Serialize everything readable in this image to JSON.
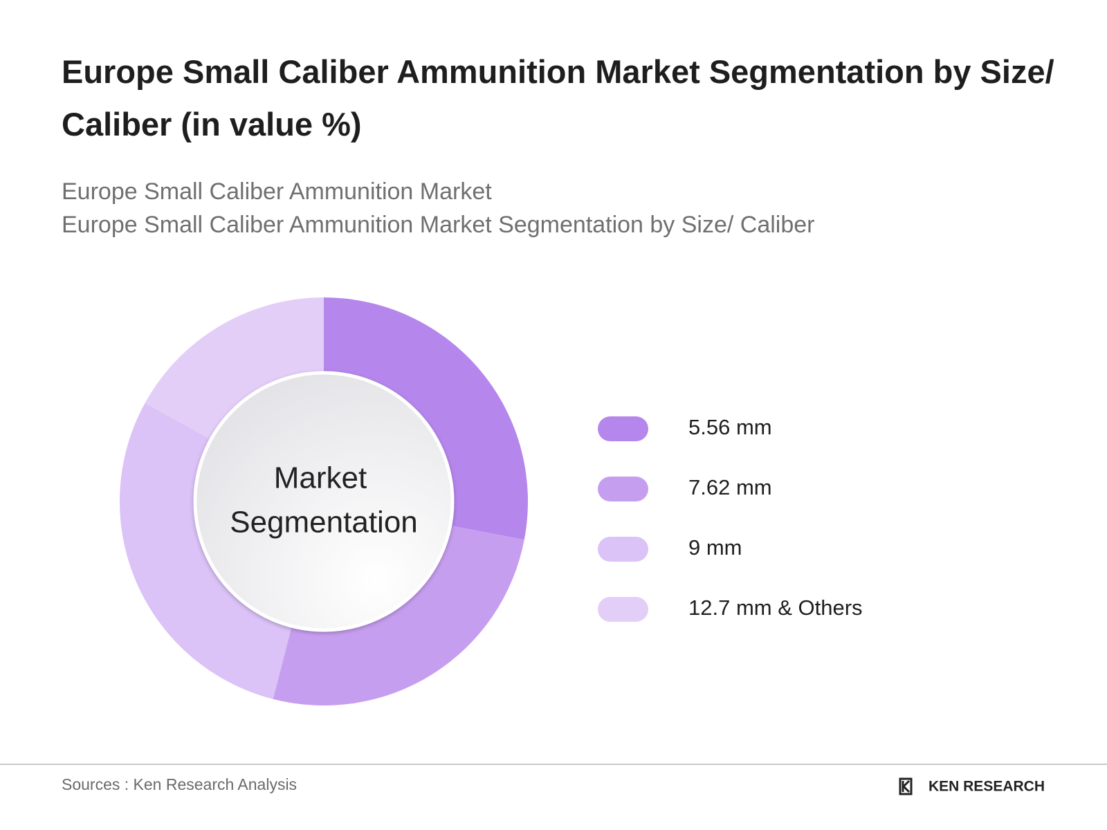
{
  "chart_data": {
    "type": "pie",
    "title": "Europe Small Caliber Ammunition Market Segmentation by Size/ Caliber (in value %)",
    "subtitles": [
      "Europe Small Caliber Ammunition Market",
      "Europe Small Caliber Ammunition Market Segmentation by Size/ Caliber"
    ],
    "center_label": [
      "Market",
      "Segmentation"
    ],
    "categories": [
      "5.56 mm",
      "7.62 mm",
      "9 mm",
      "12.7 mm & Others"
    ],
    "values": [
      28,
      26,
      29,
      17
    ],
    "colors": [
      "#b586ec",
      "#c69ef0",
      "#dbc2f7",
      "#e3cef8"
    ],
    "legend": "right"
  },
  "footer": {
    "source": "Sources : Ken Research Analysis",
    "logo": "KEN RESEARCH"
  }
}
